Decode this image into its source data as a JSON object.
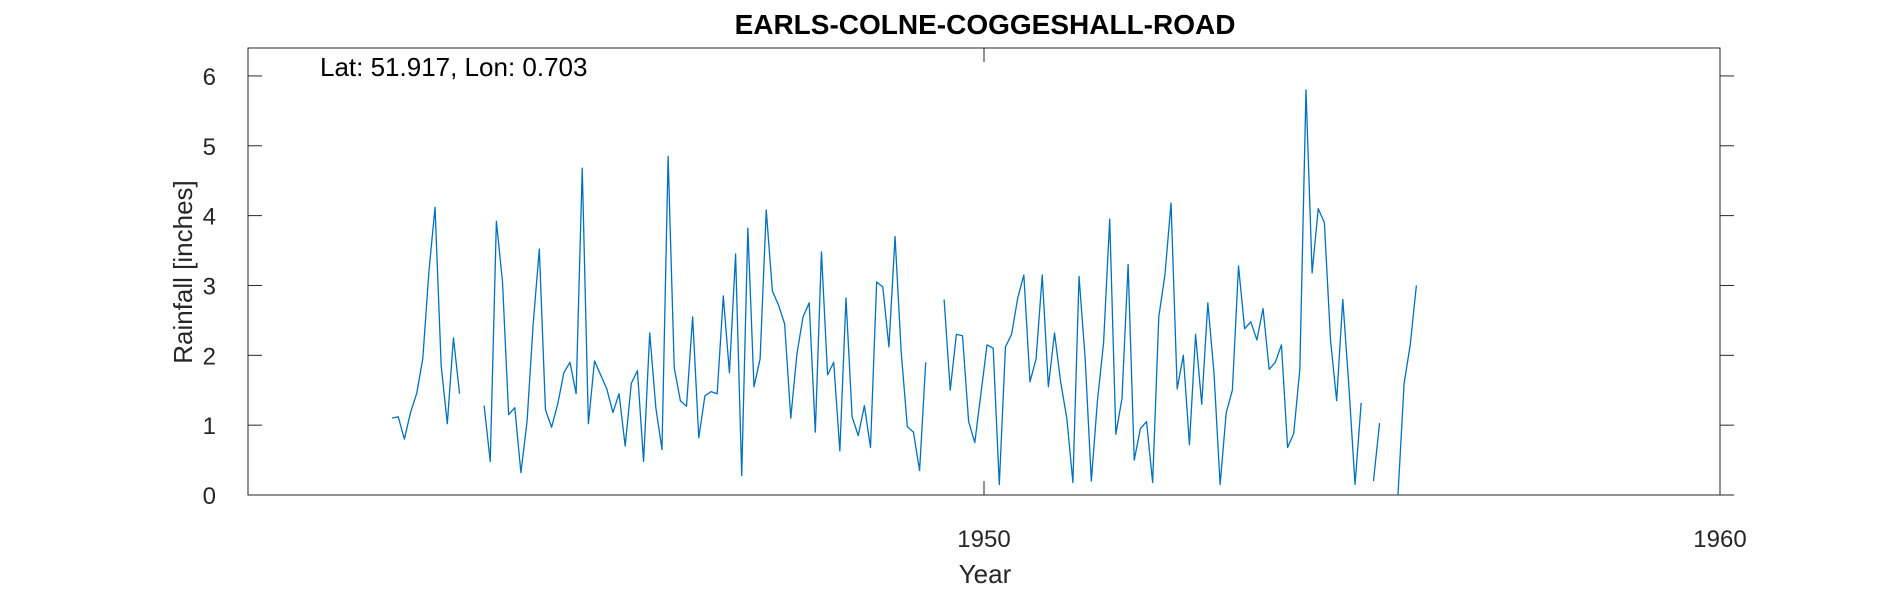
{
  "chart_data": {
    "type": "line",
    "title": "EARLS-COLNE-COGGESHALL-ROAD",
    "annotation": "Lat: 51.917, Lon: 0.703",
    "xlabel": "Year",
    "ylabel": "Rainfall [inches]",
    "xlim": [
      1940.0,
      1960.0
    ],
    "ylim": [
      0,
      6.4
    ],
    "xticks": [
      1950,
      1960
    ],
    "yticks": [
      0,
      1,
      2,
      3,
      4,
      5,
      6
    ],
    "grid": false,
    "line_color": "#0072BD",
    "series": [
      {
        "start_year": 1941.958,
        "step_months": 1,
        "values": [
          1.1,
          1.12,
          0.8,
          1.18,
          1.45,
          1.95,
          3.2,
          4.12,
          1.85,
          1.02,
          2.25,
          1.45,
          null,
          null,
          null,
          1.28,
          0.48,
          3.92,
          3.05,
          1.15,
          1.25,
          0.32,
          1.05,
          2.45,
          3.52,
          1.22,
          0.97,
          1.3,
          1.75,
          1.9,
          1.45,
          4.68,
          1.02,
          1.92,
          1.72,
          1.52,
          1.18,
          1.45,
          0.7,
          1.6,
          1.78,
          0.48,
          2.32,
          1.25,
          0.65,
          4.85,
          1.82,
          1.35,
          1.27,
          2.55,
          0.82,
          1.42,
          1.48,
          1.45,
          2.85,
          1.75,
          3.45,
          0.28,
          3.82,
          1.55,
          1.95,
          4.08,
          2.92,
          2.72,
          2.45,
          1.1,
          2.02,
          2.55,
          2.75,
          0.9,
          3.48,
          1.72,
          1.9,
          0.63,
          2.82,
          1.12,
          0.85,
          1.28,
          0.68,
          3.05,
          2.98,
          2.12,
          3.7,
          2.05,
          0.98,
          0.9,
          0.35,
          1.9,
          null,
          null,
          2.8,
          1.5,
          2.3,
          2.28,
          1.05,
          0.75,
          1.45,
          2.15,
          2.1,
          0.15,
          2.12,
          2.3,
          2.82,
          3.15,
          1.62,
          1.95,
          3.15,
          1.55,
          2.32,
          1.62,
          1.1,
          0.18,
          3.13,
          1.95,
          0.2,
          1.35,
          2.18,
          3.95,
          0.87,
          1.38,
          3.3,
          0.5,
          0.95,
          1.05,
          0.18,
          2.55,
          3.15,
          4.18,
          1.52,
          2.0,
          0.72,
          2.3,
          1.3,
          2.75,
          1.75,
          0.15,
          1.18,
          1.5,
          3.28,
          2.38,
          2.48,
          2.22,
          2.67,
          1.8,
          1.9,
          2.15,
          0.68,
          0.88,
          1.8,
          5.8,
          3.18,
          4.1,
          3.9,
          2.22,
          1.35,
          2.8,
          1.55,
          0.15,
          1.32,
          null,
          0.2,
          1.03,
          null,
          null,
          0.0,
          1.6,
          2.15,
          3.0
        ]
      }
    ]
  }
}
